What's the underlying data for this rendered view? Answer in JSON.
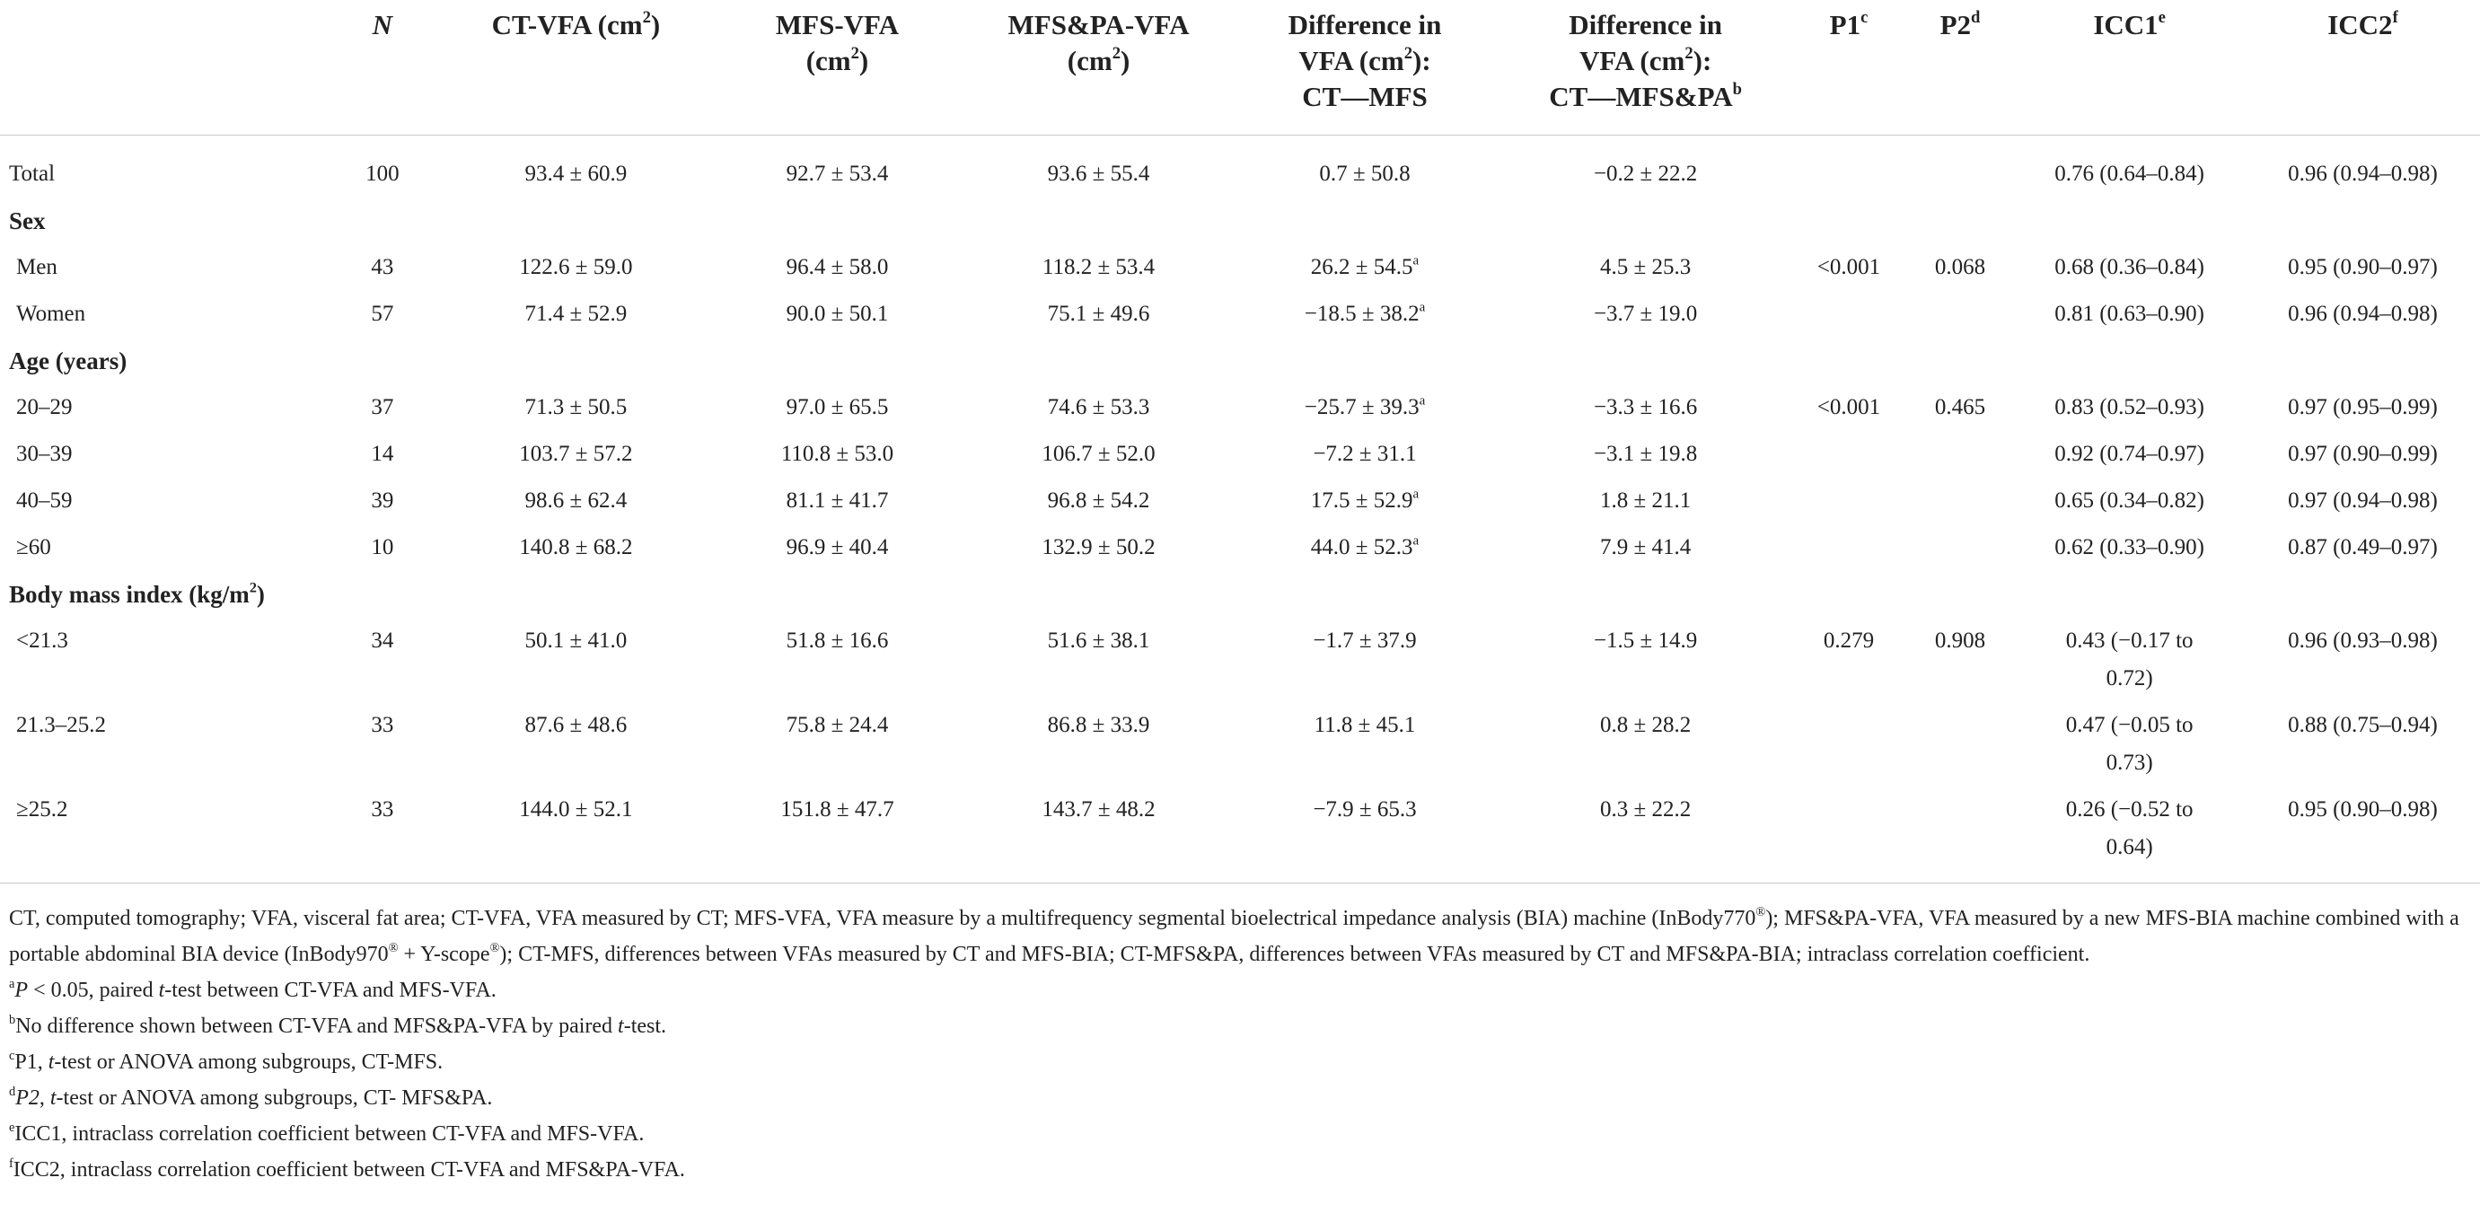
{
  "table": {
    "header": {
      "col_group": "",
      "n": "N",
      "ct_vfa": "CT-VFA (cm",
      "mfs_vfa_1": "MFS-VFA",
      "mfs_vfa_2": "(cm",
      "mfspa_vfa_1": "MFS&PA-VFA",
      "mfspa_vfa_2": "(cm",
      "diff_ct_mfs_1": "Difference in",
      "diff_ct_mfs_2": "VFA (cm",
      "diff_ct_mfs_3": "CT—MFS",
      "diff_ct_mfspa_1": "Difference in",
      "diff_ct_mfspa_2": "VFA (cm",
      "diff_ct_mfspa_3": "CT—MFS&PA",
      "p1": "P1",
      "p2": "P2",
      "icc1": "ICC1",
      "icc2": "ICC2",
      "sq": "2",
      "close_paren": ")",
      "close_paren_colon": "):",
      "sup_b": "b",
      "sup_c": "c",
      "sup_d": "d",
      "sup_e": "e",
      "sup_f": "f"
    },
    "total": {
      "label": "Total",
      "n": "100",
      "ct": "93.4 ± 60.9",
      "mfs": "92.7 ± 53.4",
      "mfspa": "93.6 ± 55.4",
      "d1": "0.7 ± 50.8",
      "d1_sup": "",
      "d2": "−0.2 ± 22.2",
      "p1": "",
      "p2": "",
      "icc1": "0.76 (0.64–0.84)",
      "icc2": "0.96 (0.94–0.98)"
    },
    "sex": {
      "label": "Sex",
      "rows": [
        {
          "label": "Men",
          "n": "43",
          "ct": "122.6 ± 59.0",
          "mfs": "96.4 ± 58.0",
          "mfspa": "118.2 ± 53.4",
          "d1": "26.2 ± 54.5",
          "d1_sup": "a",
          "d2": "4.5 ± 25.3",
          "p1": "<0.001",
          "p2": "0.068",
          "icc1": "0.68 (0.36–0.84)",
          "icc2": "0.95 (0.90–0.97)"
        },
        {
          "label": "Women",
          "n": "57",
          "ct": "71.4 ± 52.9",
          "mfs": "90.0 ± 50.1",
          "mfspa": "75.1 ± 49.6",
          "d1": "−18.5 ± 38.2",
          "d1_sup": "a",
          "d2": "−3.7 ± 19.0",
          "p1": "",
          "p2": "",
          "icc1": "0.81 (0.63–0.90)",
          "icc2": "0.96 (0.94–0.98)"
        }
      ]
    },
    "age": {
      "label": "Age (years)",
      "rows": [
        {
          "label": "20–29",
          "n": "37",
          "ct": "71.3 ± 50.5",
          "mfs": "97.0 ± 65.5",
          "mfspa": "74.6 ± 53.3",
          "d1": "−25.7 ± 39.3",
          "d1_sup": "a",
          "d2": "−3.3 ± 16.6",
          "p1": "<0.001",
          "p2": "0.465",
          "icc1": "0.83 (0.52–0.93)",
          "icc2": "0.97 (0.95–0.99)"
        },
        {
          "label": "30–39",
          "n": "14",
          "ct": "103.7 ± 57.2",
          "mfs": "110.8 ± 53.0",
          "mfspa": "106.7 ± 52.0",
          "d1": "−7.2 ± 31.1",
          "d1_sup": "",
          "d2": "−3.1 ± 19.8",
          "p1": "",
          "p2": "",
          "icc1": "0.92 (0.74–0.97)",
          "icc2": "0.97 (0.90–0.99)"
        },
        {
          "label": "40–59",
          "n": "39",
          "ct": "98.6 ± 62.4",
          "mfs": "81.1 ± 41.7",
          "mfspa": "96.8 ± 54.2",
          "d1": "17.5 ± 52.9",
          "d1_sup": "a",
          "d2": "1.8 ± 21.1",
          "p1": "",
          "p2": "",
          "icc1": "0.65 (0.34–0.82)",
          "icc2": "0.97 (0.94–0.98)"
        },
        {
          "label": "≥60",
          "n": "10",
          "ct": "140.8 ± 68.2",
          "mfs": "96.9 ± 40.4",
          "mfspa": "132.9 ± 50.2",
          "d1": "44.0 ± 52.3",
          "d1_sup": "a",
          "d2": "7.9 ± 41.4",
          "p1": "",
          "p2": "",
          "icc1": "0.62 (0.33–0.90)",
          "icc2": "0.87 (0.49–0.97)"
        }
      ]
    },
    "bmi": {
      "label": "Body mass index (kg/m",
      "label_sup": "2",
      "label_close": ")",
      "rows": [
        {
          "label": "<21.3",
          "n": "34",
          "ct": "50.1 ± 41.0",
          "mfs": "51.8 ± 16.6",
          "mfspa": "51.6 ± 38.1",
          "d1": "−1.7 ± 37.9",
          "d1_sup": "",
          "d2": "−1.5 ± 14.9",
          "p1": "0.279",
          "p2": "0.908",
          "icc1_a": "0.43 (−0.17 to",
          "icc1_b": "0.72)",
          "icc2": "0.96 (0.93–0.98)"
        },
        {
          "label": "21.3–25.2",
          "n": "33",
          "ct": "87.6 ± 48.6",
          "mfs": "75.8 ± 24.4",
          "mfspa": "86.8 ± 33.9",
          "d1": "11.8 ± 45.1",
          "d1_sup": "",
          "d2": "0.8 ± 28.2",
          "p1": "",
          "p2": "",
          "icc1_a": "0.47 (−0.05 to",
          "icc1_b": "0.73)",
          "icc2": "0.88 (0.75–0.94)"
        },
        {
          "label": "≥25.2",
          "n": "33",
          "ct": "144.0 ± 52.1",
          "mfs": "151.8 ± 47.7",
          "mfspa": "143.7 ± 48.2",
          "d1": "−7.9 ± 65.3",
          "d1_sup": "",
          "d2": "0.3 ± 22.2",
          "p1": "",
          "p2": "",
          "icc1_a": "0.26 (−0.52 to",
          "icc1_b": "0.64)",
          "icc2": "0.95 (0.90–0.98)"
        }
      ]
    }
  },
  "footnotes": {
    "abbrev": {
      "t1": "CT, computed tomography; VFA, visceral fat area; CT-VFA, VFA measured by CT; MFS-VFA, VFA measure by a multifrequency segmental bioelectrical impedance analysis (BIA) machine (InBody770",
      "reg": "®",
      "t2": "); MFS&PA-VFA, VFA measured by a new MFS-BIA machine combined with a portable abdominal BIA device (InBody970",
      "t3": " + Y-scope",
      "t4": "); CT-MFS, differences between VFAs measured by CT and MFS-BIA; CT-MFS&PA, differences between VFAs measured by CT and MFS&PA-BIA; intraclass correlation coefficient."
    },
    "a": {
      "mark": "a",
      "p": "P",
      "t1": " < 0.05, paired ",
      "t": "t",
      "t2": "-test between CT-VFA and MFS-VFA."
    },
    "b": {
      "mark": "b",
      "t1": "No difference shown between CT-VFA and MFS&PA-VFA by paired ",
      "t": "t",
      "t2": "-test."
    },
    "c": {
      "mark": "c",
      "t1": "P1, ",
      "t": "t",
      "t2": "-test or ANOVA among subgroups, CT-MFS."
    },
    "d": {
      "mark": "d",
      "p2": "P2",
      "t1": ", ",
      "t": "t",
      "t2": "-test or ANOVA among subgroups, CT- MFS&PA."
    },
    "e": {
      "mark": "e",
      "t1": "ICC1, intraclass correlation coefficient between CT-VFA and MFS-VFA."
    },
    "f": {
      "mark": "f",
      "t1": "ICC2, intraclass correlation coefficient between CT-VFA and MFS&PA-VFA."
    }
  }
}
